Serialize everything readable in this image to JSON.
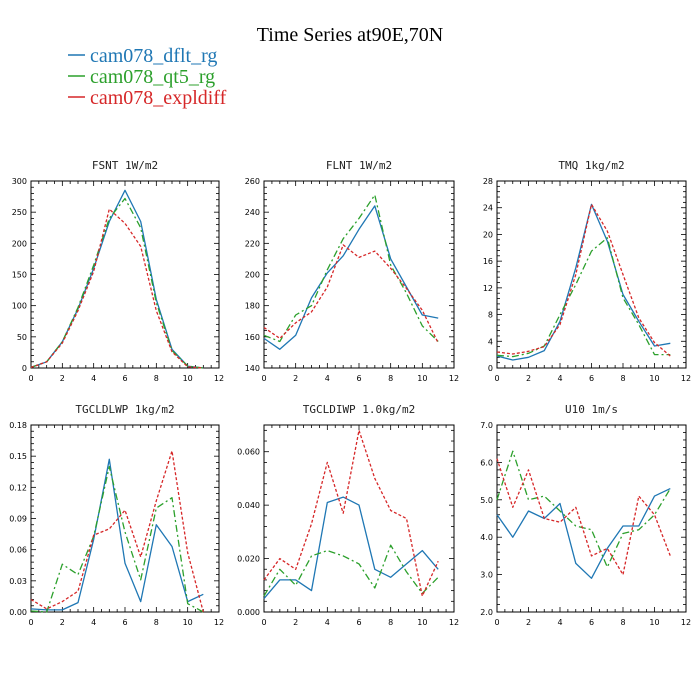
{
  "figure": {
    "title": "Time Series at90E,70N"
  },
  "legend": [
    {
      "name": "cam078_dflt_rg",
      "color": "#1f77b4"
    },
    {
      "name": "cam078_qt5_rg",
      "color": "#2ca02c"
    },
    {
      "name": "cam078_expldiff",
      "color": "#d62728"
    }
  ],
  "chart_data": [
    {
      "type": "line",
      "title": "FSNT   1W/m2",
      "xlim": [
        0,
        12
      ],
      "ylim": [
        0,
        300
      ],
      "xticks": [
        0,
        2,
        4,
        6,
        8,
        10,
        12
      ],
      "yticks": [
        0,
        50,
        100,
        150,
        200,
        250,
        300
      ],
      "ytick_labels": [
        "0",
        "50",
        "100",
        "150",
        "200",
        "250",
        "300"
      ],
      "x": [
        0,
        1,
        2,
        3,
        4,
        5,
        6,
        7,
        8,
        9,
        10,
        11
      ],
      "series": [
        {
          "name": "cam078_dflt_rg",
          "values": [
            1,
            10,
            42,
            95,
            160,
            235,
            285,
            235,
            110,
            30,
            3,
            0
          ]
        },
        {
          "name": "cam078_qt5_rg",
          "values": [
            1,
            10,
            42,
            97,
            165,
            240,
            272,
            225,
            105,
            28,
            3,
            0
          ]
        },
        {
          "name": "cam078_expldiff",
          "values": [
            1,
            10,
            40,
            92,
            155,
            255,
            232,
            195,
            92,
            26,
            2,
            0
          ]
        }
      ]
    },
    {
      "type": "line",
      "title": "FLNT   1W/m2",
      "xlim": [
        0,
        12
      ],
      "ylim": [
        140,
        260
      ],
      "xticks": [
        0,
        2,
        4,
        6,
        8,
        10,
        12
      ],
      "yticks": [
        140,
        160,
        180,
        200,
        220,
        240,
        260
      ],
      "ytick_labels": [
        "140",
        "160",
        "180",
        "200",
        "220",
        "240",
        "260"
      ],
      "x": [
        0,
        1,
        2,
        3,
        4,
        5,
        6,
        7,
        8,
        9,
        10,
        11
      ],
      "series": [
        {
          "name": "cam078_dflt_rg",
          "values": [
            159,
            152,
            161,
            185,
            201,
            212,
            229,
            244,
            210,
            192,
            174,
            172
          ]
        },
        {
          "name": "cam078_qt5_rg",
          "values": [
            161,
            157,
            174,
            180,
            203,
            223,
            236,
            251,
            206,
            188,
            167,
            157
          ]
        },
        {
          "name": "cam078_expldiff",
          "values": [
            166,
            159,
            169,
            176,
            192,
            219,
            211,
            215,
            204,
            191,
            177,
            156
          ]
        }
      ]
    },
    {
      "type": "line",
      "title": "TMQ   1kg/m2",
      "xlim": [
        0,
        12
      ],
      "ylim": [
        0,
        28
      ],
      "xticks": [
        0,
        2,
        4,
        6,
        8,
        10,
        12
      ],
      "yticks": [
        0,
        4,
        8,
        12,
        16,
        20,
        24,
        28
      ],
      "ytick_labels": [
        "0",
        "4",
        "8",
        "12",
        "16",
        "20",
        "24",
        "28"
      ],
      "x": [
        0,
        1,
        2,
        3,
        4,
        5,
        6,
        7,
        8,
        9,
        10,
        11
      ],
      "series": [
        {
          "name": "cam078_dflt_rg",
          "values": [
            1.8,
            1.2,
            1.6,
            2.6,
            7.0,
            15.0,
            24.5,
            19.0,
            11.0,
            7.0,
            3.3,
            3.7
          ]
        },
        {
          "name": "cam078_qt5_rg",
          "values": [
            1.9,
            1.7,
            2.2,
            3.3,
            8.0,
            12.5,
            17.5,
            19.5,
            10.5,
            6.5,
            2.0,
            2.0
          ]
        },
        {
          "name": "cam078_expldiff",
          "values": [
            2.4,
            2.1,
            2.5,
            3.2,
            6.5,
            14.0,
            24.5,
            20.5,
            14.0,
            7.5,
            3.8,
            1.8
          ]
        }
      ]
    },
    {
      "type": "line",
      "title": "TGCLDLWP   1kg/m2",
      "xlim": [
        0,
        12
      ],
      "ylim": [
        0,
        0.18
      ],
      "xticks": [
        0,
        2,
        4,
        6,
        8,
        10,
        12
      ],
      "yticks": [
        0,
        0.03,
        0.06,
        0.09,
        0.12,
        0.15,
        0.18
      ],
      "ytick_labels": [
        "0.00",
        "0.03",
        "0.06",
        "0.09",
        "0.12",
        "0.15",
        "0.18"
      ],
      "x": [
        0,
        1,
        2,
        3,
        4,
        5,
        6,
        7,
        8,
        9,
        10,
        11
      ],
      "series": [
        {
          "name": "cam078_dflt_rg",
          "values": [
            0.003,
            0.002,
            0.002,
            0.009,
            0.07,
            0.147,
            0.047,
            0.01,
            0.084,
            0.063,
            0.01,
            0.017
          ]
        },
        {
          "name": "cam078_qt5_rg",
          "values": [
            0.001,
            0.0,
            0.046,
            0.036,
            0.073,
            0.14,
            0.077,
            0.031,
            0.1,
            0.11,
            0.008,
            0.0
          ]
        },
        {
          "name": "cam078_expldiff",
          "values": [
            0.012,
            0.003,
            0.01,
            0.02,
            0.074,
            0.08,
            0.098,
            0.053,
            0.107,
            0.155,
            0.057,
            0.0
          ]
        }
      ]
    },
    {
      "type": "line",
      "title": "TGCLDIWP   1.0kg/m2",
      "xlim": [
        0,
        12
      ],
      "ylim": [
        0,
        0.07
      ],
      "xticks": [
        0,
        2,
        4,
        6,
        8,
        10,
        12
      ],
      "yticks": [
        0,
        0.02,
        0.04,
        0.06
      ],
      "ytick_labels": [
        "0.000",
        "0.020",
        "0.040",
        "0.060"
      ],
      "x": [
        0,
        1,
        2,
        3,
        4,
        5,
        6,
        7,
        8,
        9,
        10,
        11
      ],
      "series": [
        {
          "name": "cam078_dflt_rg",
          "values": [
            0.005,
            0.012,
            0.012,
            0.008,
            0.041,
            0.043,
            0.04,
            0.016,
            0.013,
            0.018,
            0.023,
            0.016
          ]
        },
        {
          "name": "cam078_qt5_rg",
          "values": [
            0.006,
            0.016,
            0.01,
            0.021,
            0.023,
            0.021,
            0.018,
            0.009,
            0.025,
            0.015,
            0.007,
            0.013
          ]
        },
        {
          "name": "cam078_expldiff",
          "values": [
            0.012,
            0.02,
            0.016,
            0.033,
            0.056,
            0.037,
            0.068,
            0.05,
            0.038,
            0.035,
            0.006,
            0.019
          ]
        }
      ]
    },
    {
      "type": "line",
      "title": "U10   1m/s",
      "xlim": [
        0,
        12
      ],
      "ylim": [
        2.0,
        7.0
      ],
      "xticks": [
        0,
        2,
        4,
        6,
        8,
        10,
        12
      ],
      "yticks": [
        2.0,
        3.0,
        4.0,
        5.0,
        6.0,
        7.0
      ],
      "ytick_labels": [
        "2.0",
        "3.0",
        "4.0",
        "5.0",
        "6.0",
        "7.0"
      ],
      "x": [
        0,
        1,
        2,
        3,
        4,
        5,
        6,
        7,
        8,
        9,
        10,
        11
      ],
      "series": [
        {
          "name": "cam078_dflt_rg",
          "values": [
            4.6,
            4.0,
            4.7,
            4.5,
            4.9,
            3.3,
            2.9,
            3.7,
            4.3,
            4.3,
            5.1,
            5.3
          ]
        },
        {
          "name": "cam078_qt5_rg",
          "values": [
            5.0,
            6.3,
            5.0,
            5.1,
            4.7,
            4.3,
            4.2,
            3.2,
            4.1,
            4.2,
            4.6,
            5.3
          ]
        },
        {
          "name": "cam078_expldiff",
          "values": [
            6.1,
            4.8,
            5.8,
            4.5,
            4.4,
            4.8,
            3.5,
            3.7,
            3.0,
            5.1,
            4.6,
            3.5
          ]
        }
      ]
    }
  ]
}
